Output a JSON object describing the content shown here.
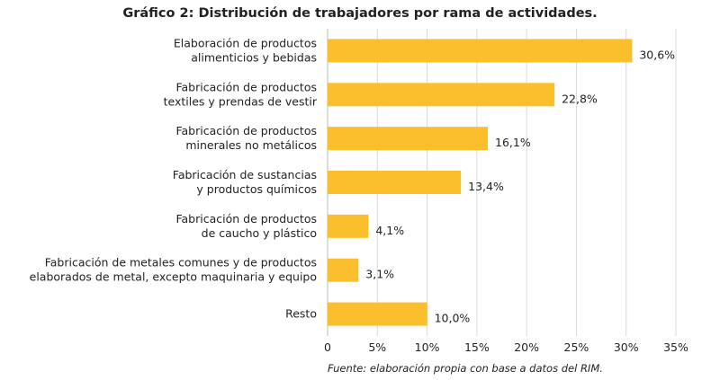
{
  "chart_data": {
    "type": "bar",
    "orientation": "horizontal",
    "title": "Gráfico 2: Distribución de trabajadores por rama de actividades.",
    "categories": [
      [
        "Elaboración de productos",
        "alimenticios y bebidas"
      ],
      [
        "Fabricación de productos",
        "textiles y prendas de vestir"
      ],
      [
        "Fabricación de productos",
        "minerales no metálicos"
      ],
      [
        "Fabricación de sustancias",
        "y productos químicos"
      ],
      [
        "Fabricación de productos",
        "de caucho y plástico"
      ],
      [
        "Fabricación de metales comunes y de productos",
        "elaborados de metal, excepto maquinaria y equipo"
      ],
      [
        "Resto"
      ]
    ],
    "values": [
      30.6,
      22.8,
      16.1,
      13.4,
      4.1,
      3.1,
      10.0
    ],
    "value_labels": [
      "30,6%",
      "22,8%",
      "16,1%",
      "13,4%",
      "4,1%",
      "3,1%",
      "10,0%"
    ],
    "xlim": [
      0,
      35
    ],
    "xticks": [
      0,
      5,
      10,
      15,
      20,
      25,
      30,
      35
    ],
    "xtick_labels": [
      "0",
      "5%",
      "10%",
      "15%",
      "20%",
      "25%",
      "30%",
      "35%"
    ],
    "grid": "vertical",
    "bar_color": "#FBBF2E",
    "source": "Fuente: elaboración propia con base a datos del RIM."
  }
}
